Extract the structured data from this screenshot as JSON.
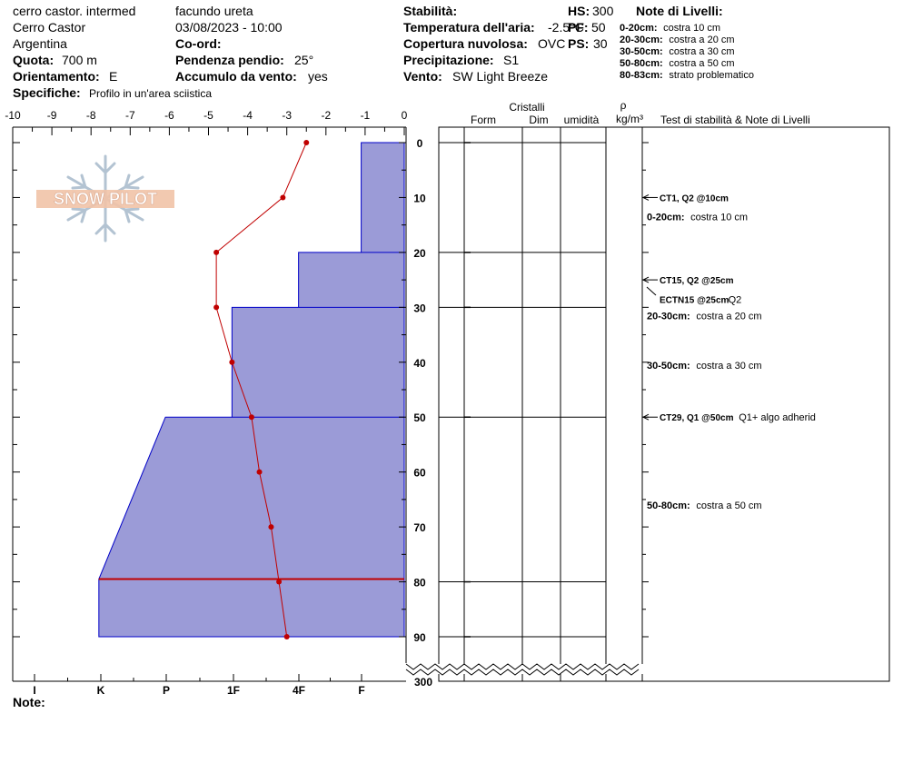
{
  "header": {
    "site": "cerro castor. intermed",
    "location": "Cerro Castor",
    "country": "Argentina",
    "elevation_label": "Quota:",
    "elevation_value": "700 m",
    "aspect_label": "Orientamento:",
    "aspect_value": "E",
    "specifics_label": "Specifiche:",
    "specifics_value": "Profilo in un'area sciistica",
    "observer": "facundo ureta",
    "datetime": "03/08/2023 - 10:00",
    "coord_label": "Co-ord:",
    "slope_label": "Pendenza pendio:",
    "slope_value": "25°",
    "wind_loading_label": "Accumulo da vento:",
    "wind_loading_value": "yes",
    "stability_label": "Stabilità:",
    "air_temp_label": "Temperatura dell'aria:",
    "air_temp_value": "-2.5°C",
    "sky_label": "Copertura nuvolosa:",
    "sky_value": "OVC",
    "precip_label": "Precipitazione:",
    "precip_value": "S1",
    "wind_label": "Vento:",
    "wind_value": "SW Light Breeze",
    "hs_label": "HS:",
    "hs_value": "300",
    "pf_label": "PF:",
    "pf_value": "50",
    "ps_label": "PS:",
    "ps_value": "30"
  },
  "layer_notes": {
    "title": "Note di Livelli:",
    "items": [
      {
        "range": "0-20cm:",
        "text": "costra 10 cm"
      },
      {
        "range": "20-30cm:",
        "text": "costra a 20 cm"
      },
      {
        "range": "30-50cm:",
        "text": "costra a 30 cm"
      },
      {
        "range": "50-80cm:",
        "text": "costra a 50 cm"
      },
      {
        "range": "80-83cm:",
        "text": "strato problematico"
      }
    ]
  },
  "columns": {
    "crystals": "Cristalli",
    "form": "Form",
    "size": "Dim",
    "moisture": "umidità",
    "density_symbol": "ρ",
    "density_unit": "kg/m³",
    "tests": "Test di stabilità & Note di Livelli"
  },
  "footer": {
    "note_label": "Note:"
  },
  "logo_text": "SNOW PILOT",
  "right_annotations": [
    {
      "depth": 10,
      "arrow": true,
      "test": "CT1, Q2 @10cm",
      "extra": ""
    },
    {
      "depth": 13.5,
      "arrow": false,
      "range": "0-20cm:",
      "text": "costra 10 cm"
    },
    {
      "depth": 25,
      "arrow": true,
      "test": "CT15, Q2 @25cm",
      "extra": ""
    },
    {
      "depth": 28.5,
      "arrow": false,
      "test": "ECTN15 @25cm",
      "extra": "Q2"
    },
    {
      "depth": 31.5,
      "arrow": false,
      "range": "20-30cm:",
      "text": "costra a 20 cm"
    },
    {
      "depth": 40.5,
      "arrow": false,
      "range": "30-50cm:",
      "text": "costra a 30 cm"
    },
    {
      "depth": 50,
      "arrow": true,
      "test": "CT29, Q1 @50cm",
      "extra": "Q1+ algo adherid"
    },
    {
      "depth": 66,
      "arrow": false,
      "range": "50-80cm:",
      "text": "costra a 50 cm"
    }
  ],
  "chart_data": {
    "type": "snow-profile",
    "temperature_axis": {
      "ticks": [
        -10,
        -9,
        -8,
        -7,
        -6,
        -5,
        -4,
        -3,
        -2,
        -1,
        0
      ],
      "range": [
        -10,
        0
      ]
    },
    "hardness_axis": {
      "labels": [
        "I",
        "K",
        "P",
        "1F",
        "4F",
        "F"
      ]
    },
    "depth_axis": {
      "ticks": [
        0,
        10,
        20,
        30,
        40,
        50,
        60,
        70,
        80,
        90
      ],
      "bottom_label": "300",
      "range": [
        0,
        90
      ]
    },
    "temperature_profile": [
      {
        "depth": 0,
        "temp": -2.5
      },
      {
        "depth": 10,
        "temp": -3.1
      },
      {
        "depth": 20,
        "temp": -4.8
      },
      {
        "depth": 30,
        "temp": -4.8
      },
      {
        "depth": 40,
        "temp": -4.4
      },
      {
        "depth": 50,
        "temp": -3.9
      },
      {
        "depth": 60,
        "temp": -3.7
      },
      {
        "depth": 70,
        "temp": -3.4
      },
      {
        "depth": 80,
        "temp": -3.2
      },
      {
        "depth": 90,
        "temp": -3.0
      }
    ],
    "hardness_polygon": [
      {
        "depth": 0,
        "temp": -1.1
      },
      {
        "depth": 20,
        "temp": -1.1
      },
      {
        "depth": 20,
        "temp": -2.7
      },
      {
        "depth": 30,
        "temp": -2.7
      },
      {
        "depth": 30,
        "temp": -4.4
      },
      {
        "depth": 50,
        "temp": -4.4
      },
      {
        "depth": 50,
        "temp": -6.1
      },
      {
        "depth": 79.5,
        "temp": -7.8
      },
      {
        "depth": 90,
        "temp": -7.8
      }
    ],
    "problem_layer_depth": 79.5,
    "layer_boundaries": [
      0,
      20,
      30,
      50,
      80,
      90
    ],
    "colors": {
      "hardness_fill": "#9b9bd7",
      "hardness_edge": "#0000c8",
      "temperature": "#c00000",
      "problem_layer": "#c00000"
    }
  }
}
